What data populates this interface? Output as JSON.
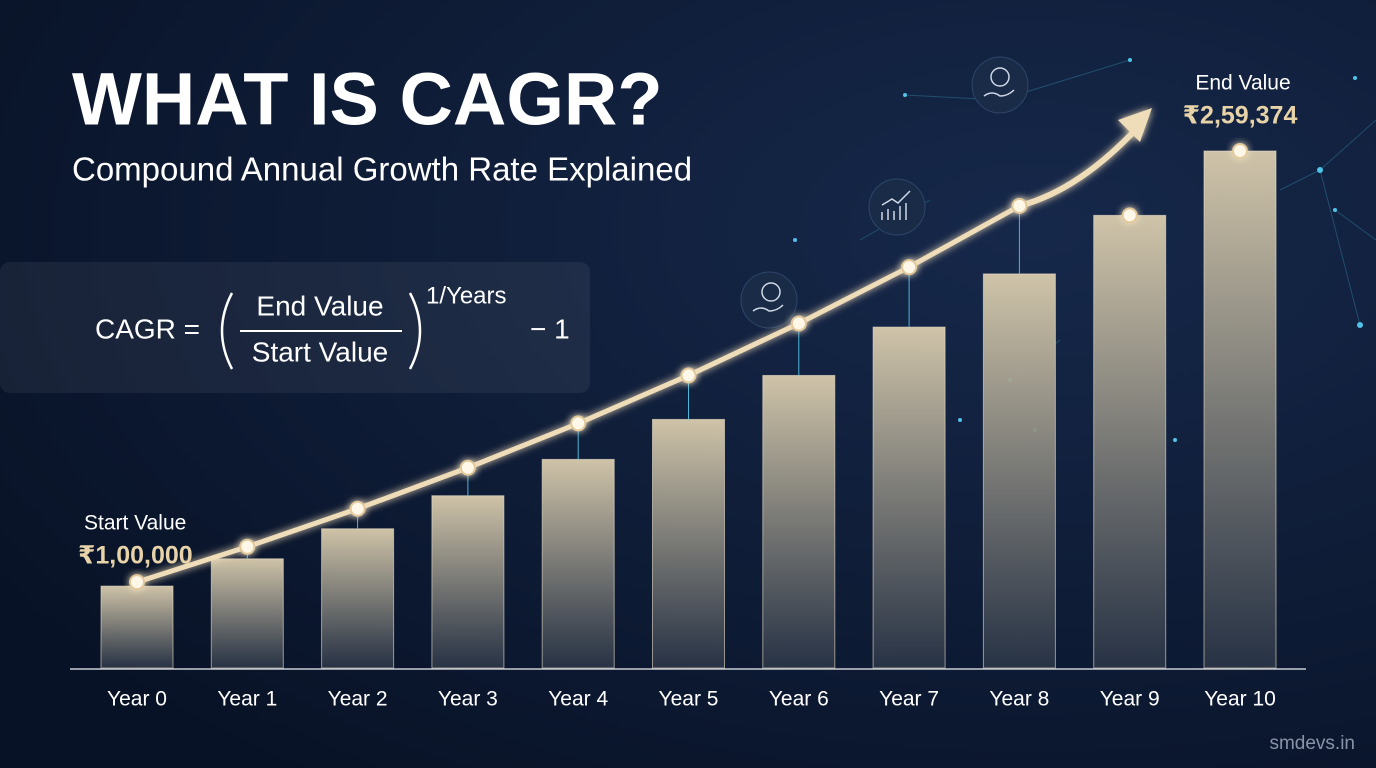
{
  "chart_data": {
    "type": "bar",
    "title": "WHAT IS CAGR?",
    "subtitle": "Compound Annual Growth Rate Explained",
    "formula": {
      "left": "CAGR =",
      "numerator": "End Value",
      "denominator": "Start Value",
      "exponent": "1/Years",
      "tail": "− 1"
    },
    "start_annotation": "Start Value",
    "end_annotation": "End Value",
    "categories": [
      "Year 0",
      "Year 1",
      "Year 2",
      "Year 3",
      "Year 4",
      "Year 5",
      "Year 6",
      "Year 7",
      "Year 8",
      "Year 9",
      "Year 10"
    ],
    "values": [
      100000,
      110000,
      121000,
      133100,
      146410,
      161051,
      177156,
      194872,
      214359,
      235795,
      259374
    ],
    "value_labels": [
      "₹1,00,000",
      null,
      null,
      null,
      null,
      null,
      null,
      null,
      null,
      null,
      "₹2,59,374"
    ],
    "color": "#d9ccae",
    "ylim": [
      70000,
      270000
    ],
    "watermark": "smdevs.in"
  }
}
